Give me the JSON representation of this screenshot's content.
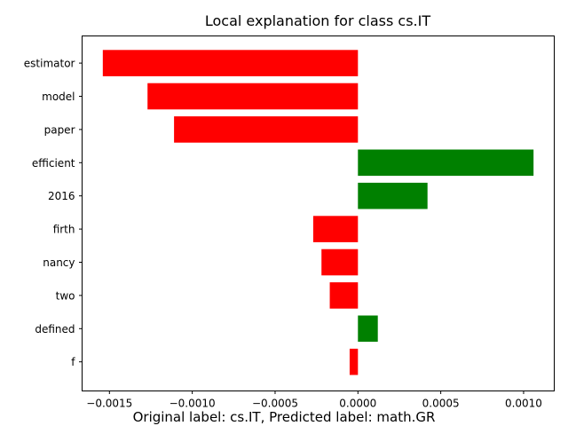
{
  "chart_data": {
    "type": "bar",
    "orientation": "horizontal",
    "title": "Local explanation for class cs.IT",
    "caption": "Original label: cs.IT, Predicted label: math.GR",
    "xlabel": "",
    "ylabel": "",
    "xlim": [
      -0.001665,
      0.001185
    ],
    "xticks": [
      -0.0015,
      -0.001,
      -0.0005,
      0.0,
      0.0005,
      0.001
    ],
    "xtick_labels": [
      "−0.0015",
      "−0.0010",
      "−0.0005",
      "0.0000",
      "0.0005",
      "0.0010"
    ],
    "categories": [
      "estimator",
      "model",
      "paper",
      "efficient",
      "2016",
      "firth",
      "nancy",
      "two",
      "defined",
      "f"
    ],
    "values": [
      -0.00154,
      -0.00127,
      -0.00111,
      0.00106,
      0.00042,
      -0.00027,
      -0.00022,
      -0.00017,
      0.00012,
      -5e-05
    ],
    "colors": {
      "positive": "#008000",
      "negative": "#ff0000"
    },
    "grid": false,
    "legend": "none"
  }
}
